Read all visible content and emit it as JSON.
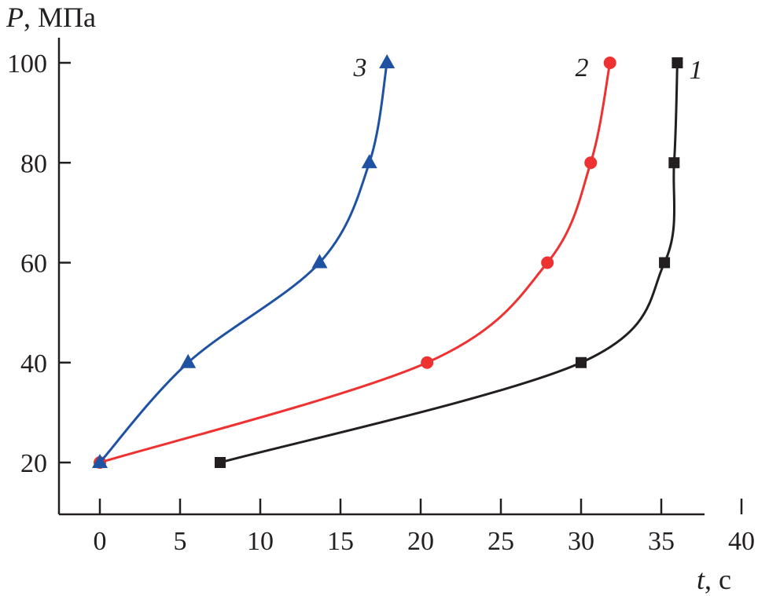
{
  "chart_data": {
    "type": "line",
    "title": "",
    "xlabel_var": "t",
    "xlabel_unit": ", с",
    "ylabel_var": "P",
    "ylabel_unit": ", МПа",
    "xlim": [
      -2.5,
      40
    ],
    "ylim": [
      10,
      103
    ],
    "xticks": [
      0,
      5,
      10,
      15,
      20,
      25,
      30,
      35,
      40
    ],
    "yticks": [
      20,
      40,
      60,
      80,
      100
    ],
    "grid": false,
    "series": [
      {
        "name": "1",
        "color": "#231f20",
        "marker": "square",
        "x": [
          7.5,
          30.0,
          35.2,
          35.8,
          36.0
        ],
        "y": [
          20,
          40,
          60,
          80,
          100
        ]
      },
      {
        "name": "2",
        "color": "#ee3131",
        "marker": "circle",
        "x": [
          0,
          20.4,
          27.9,
          30.6,
          31.8
        ],
        "y": [
          20,
          40,
          60,
          80,
          100
        ]
      },
      {
        "name": "3",
        "color": "#1f52a3",
        "marker": "triangle",
        "x": [
          0,
          5.5,
          13.7,
          16.8,
          17.9
        ],
        "y": [
          20,
          40,
          60,
          80,
          100
        ]
      }
    ]
  }
}
